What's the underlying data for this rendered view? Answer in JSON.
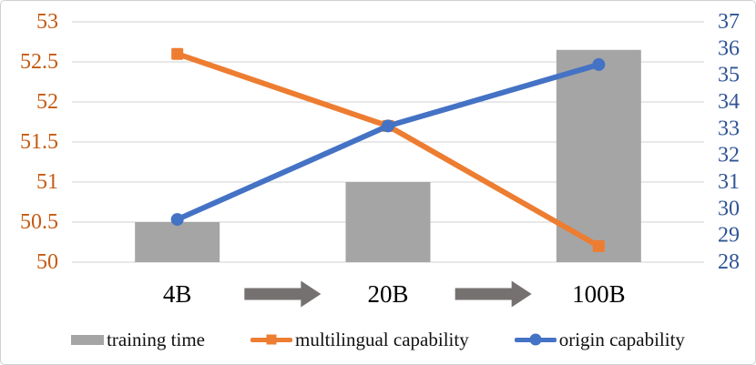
{
  "chart_data": {
    "type": "combo",
    "title": "",
    "categories": [
      "4B",
      "20B",
      "100B"
    ],
    "series": [
      {
        "name": "training time",
        "type": "bar",
        "axis": "left",
        "marker": "none",
        "values": [
          50.5,
          51,
          52.65
        ],
        "color": "#a5a5a5"
      },
      {
        "name": "multilingual capability",
        "type": "line",
        "axis": "left",
        "marker": "square",
        "values": [
          52.6,
          51.7,
          50.2
        ],
        "color": "#ed7d31"
      },
      {
        "name": "origin capability",
        "type": "line",
        "axis": "right",
        "marker": "circle",
        "values": [
          29.6,
          33.1,
          35.4
        ],
        "color": "#4472c4"
      }
    ],
    "left_axis": {
      "min": 50,
      "max": 53,
      "step": 0.5,
      "ticks": [
        50,
        50.5,
        51,
        51.5,
        52,
        52.5,
        53
      ],
      "color": "#c55a11"
    },
    "right_axis": {
      "min": 28,
      "max": 37,
      "step": 1,
      "ticks": [
        28,
        29,
        30,
        31,
        32,
        33,
        34,
        35,
        36,
        37
      ],
      "color": "#2f5496"
    },
    "grid": true,
    "gridline_color": "#d9d9d9",
    "x_label_color": "#000000",
    "arrows_between_categories": true,
    "arrow_color": "#767171",
    "legend_position": "bottom",
    "background_color": "#ffffff"
  }
}
